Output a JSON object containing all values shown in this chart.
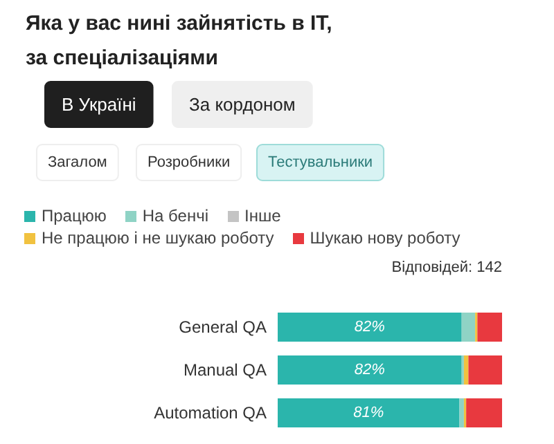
{
  "chart_data": {
    "type": "bar",
    "orientation": "horizontal",
    "stacked": true,
    "title": "Яка у вас нині зайнятість в IT,\nза спеціалізаціями",
    "categories": [
      "General QA",
      "Manual QA",
      "Automation QA"
    ],
    "series": [
      {
        "name": "Працюю",
        "color": "#2bb5ac",
        "values": [
          82,
          82,
          81
        ],
        "value_labels": [
          "82%",
          "82%",
          "81%"
        ]
      },
      {
        "name": "На бенчі",
        "color": "#8fd3c5",
        "values": [
          6,
          1,
          2
        ]
      },
      {
        "name": "Інше",
        "color": "#c4c4c4",
        "values": [
          0,
          0,
          0
        ]
      },
      {
        "name": "Не працюю і не шукаю роботу",
        "color": "#f1c240",
        "values": [
          1,
          2,
          1
        ]
      },
      {
        "name": "Шукаю нову роботу",
        "color": "#e8393f",
        "values": [
          11,
          15,
          16
        ]
      }
    ],
    "xlim": [
      0,
      100
    ],
    "tick_labels": "y",
    "grid": false,
    "legend": "top",
    "annotations": [
      "В Україні",
      "За кордоном",
      "Загалом",
      "Розробники",
      "Тестувальники",
      "Відповідей: 142"
    ]
  }
}
